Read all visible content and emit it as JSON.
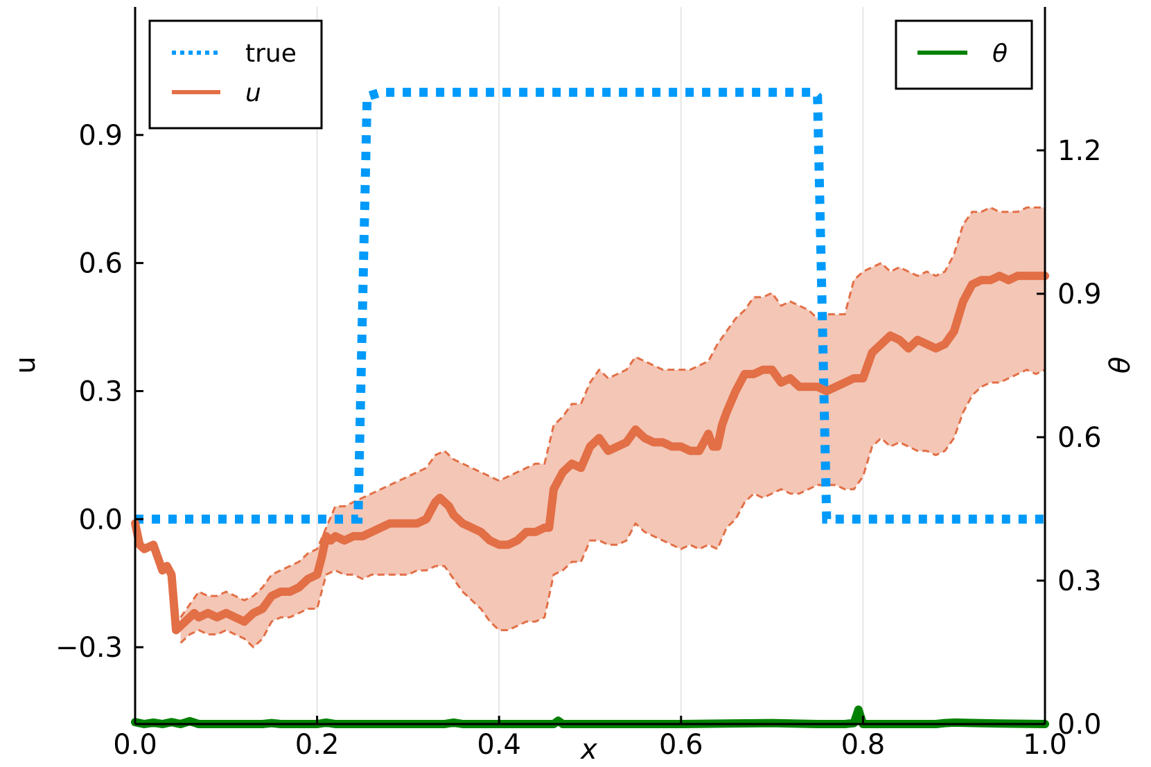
{
  "chart_data": {
    "type": "line",
    "x_axis": {
      "label": "x",
      "range": [
        0.0,
        1.0
      ],
      "ticks": [
        0.0,
        0.2,
        0.4,
        0.6,
        0.8,
        1.0
      ],
      "tick_labels": [
        "0.0",
        "0.2",
        "0.4",
        "0.6",
        "0.8",
        "1.0"
      ],
      "grid": true
    },
    "y_axis_left": {
      "label": "u",
      "range": [
        -0.48,
        1.2
      ],
      "ticks": [
        -0.3,
        0.0,
        0.3,
        0.6,
        0.9
      ],
      "tick_labels": [
        "−0.3",
        "0.0",
        "0.3",
        "0.6",
        "0.9"
      ]
    },
    "y_axis_right": {
      "label": "θ",
      "range": [
        0.0,
        1.5
      ],
      "ticks": [
        0.0,
        0.3,
        0.6,
        0.9,
        1.2
      ],
      "tick_labels": [
        "0.0",
        "0.3",
        "0.6",
        "0.9",
        "1.2"
      ]
    },
    "legend_left": {
      "position": "top-left",
      "entries": [
        {
          "label": "true",
          "style": "dotted",
          "color": "#009AFA"
        },
        {
          "label": "u",
          "style": "solid",
          "color": "#E26F46"
        }
      ]
    },
    "legend_right": {
      "position": "top-right",
      "entries": [
        {
          "label": "θ",
          "style": "solid",
          "color": "#008000"
        }
      ]
    },
    "colors": {
      "true": "#009AFA",
      "u": "#E26F46",
      "band": "#F4C6B6",
      "theta": "#008000"
    },
    "series": [
      {
        "name": "true",
        "axis": "left",
        "style": "dotted",
        "x": [
          0.0,
          0.245,
          0.25,
          0.255,
          0.27,
          0.745,
          0.75,
          0.755,
          0.76,
          1.0
        ],
        "y": [
          0.0,
          0.0,
          0.5,
          0.99,
          1.0,
          1.0,
          0.99,
          0.5,
          0.0,
          0.0
        ]
      },
      {
        "name": "u",
        "axis": "left",
        "style": "solid",
        "x": [
          0.0,
          0.005,
          0.01,
          0.02,
          0.03,
          0.035,
          0.04,
          0.045,
          0.05,
          0.055,
          0.06,
          0.065,
          0.07,
          0.08,
          0.09,
          0.1,
          0.11,
          0.12,
          0.13,
          0.14,
          0.15,
          0.16,
          0.17,
          0.18,
          0.19,
          0.2,
          0.205,
          0.21,
          0.215,
          0.22,
          0.23,
          0.24,
          0.25,
          0.26,
          0.27,
          0.28,
          0.29,
          0.3,
          0.31,
          0.32,
          0.325,
          0.33,
          0.335,
          0.34,
          0.345,
          0.35,
          0.36,
          0.37,
          0.38,
          0.39,
          0.4,
          0.41,
          0.42,
          0.43,
          0.44,
          0.45,
          0.455,
          0.46,
          0.465,
          0.47,
          0.48,
          0.49,
          0.5,
          0.51,
          0.52,
          0.53,
          0.54,
          0.55,
          0.555,
          0.56,
          0.57,
          0.58,
          0.59,
          0.6,
          0.61,
          0.62,
          0.63,
          0.635,
          0.64,
          0.645,
          0.65,
          0.66,
          0.67,
          0.68,
          0.69,
          0.7,
          0.71,
          0.72,
          0.73,
          0.74,
          0.75,
          0.76,
          0.77,
          0.78,
          0.79,
          0.8,
          0.81,
          0.82,
          0.83,
          0.84,
          0.85,
          0.86,
          0.87,
          0.88,
          0.89,
          0.9,
          0.91,
          0.92,
          0.93,
          0.94,
          0.95,
          0.96,
          0.97,
          0.98,
          0.99,
          1.0
        ],
        "y": [
          -0.01,
          -0.06,
          -0.07,
          -0.06,
          -0.12,
          -0.11,
          -0.13,
          -0.26,
          -0.25,
          -0.24,
          -0.23,
          -0.22,
          -0.23,
          -0.22,
          -0.23,
          -0.22,
          -0.23,
          -0.24,
          -0.22,
          -0.21,
          -0.18,
          -0.17,
          -0.17,
          -0.16,
          -0.14,
          -0.13,
          -0.09,
          -0.04,
          -0.05,
          -0.04,
          -0.05,
          -0.04,
          -0.04,
          -0.03,
          -0.02,
          -0.01,
          -0.01,
          -0.01,
          -0.01,
          0.0,
          0.02,
          0.04,
          0.05,
          0.04,
          0.03,
          0.01,
          -0.01,
          -0.02,
          -0.03,
          -0.05,
          -0.06,
          -0.06,
          -0.05,
          -0.03,
          -0.03,
          -0.02,
          -0.02,
          0.07,
          0.09,
          0.11,
          0.13,
          0.12,
          0.17,
          0.19,
          0.16,
          0.17,
          0.18,
          0.21,
          0.2,
          0.19,
          0.18,
          0.18,
          0.17,
          0.17,
          0.16,
          0.16,
          0.2,
          0.17,
          0.17,
          0.22,
          0.25,
          0.3,
          0.34,
          0.34,
          0.35,
          0.35,
          0.32,
          0.33,
          0.31,
          0.31,
          0.31,
          0.3,
          0.31,
          0.32,
          0.33,
          0.33,
          0.39,
          0.41,
          0.43,
          0.42,
          0.4,
          0.42,
          0.41,
          0.4,
          0.41,
          0.44,
          0.51,
          0.55,
          0.56,
          0.56,
          0.57,
          0.56,
          0.57,
          0.57,
          0.57,
          0.57
        ]
      },
      {
        "name": "u_band_upper",
        "axis": "left",
        "style": "dashed",
        "x": [
          0.05,
          0.06,
          0.07,
          0.08,
          0.09,
          0.1,
          0.11,
          0.12,
          0.13,
          0.14,
          0.15,
          0.16,
          0.17,
          0.18,
          0.19,
          0.2,
          0.21,
          0.22,
          0.23,
          0.24,
          0.25,
          0.26,
          0.27,
          0.28,
          0.29,
          0.3,
          0.31,
          0.32,
          0.33,
          0.34,
          0.35,
          0.36,
          0.37,
          0.38,
          0.39,
          0.4,
          0.41,
          0.42,
          0.43,
          0.44,
          0.45,
          0.46,
          0.47,
          0.48,
          0.49,
          0.5,
          0.51,
          0.52,
          0.53,
          0.54,
          0.55,
          0.56,
          0.57,
          0.58,
          0.59,
          0.6,
          0.61,
          0.62,
          0.63,
          0.64,
          0.65,
          0.66,
          0.67,
          0.68,
          0.69,
          0.7,
          0.71,
          0.72,
          0.73,
          0.74,
          0.75,
          0.76,
          0.77,
          0.78,
          0.79,
          0.8,
          0.81,
          0.82,
          0.83,
          0.84,
          0.85,
          0.86,
          0.87,
          0.88,
          0.89,
          0.9,
          0.91,
          0.92,
          0.93,
          0.94,
          0.95,
          0.96,
          0.97,
          0.98,
          0.99,
          1.0
        ],
        "y": [
          -0.23,
          -0.2,
          -0.17,
          -0.18,
          -0.18,
          -0.17,
          -0.18,
          -0.19,
          -0.18,
          -0.16,
          -0.13,
          -0.12,
          -0.11,
          -0.1,
          -0.08,
          -0.07,
          -0.02,
          0.03,
          0.03,
          0.04,
          0.05,
          0.06,
          0.07,
          0.08,
          0.09,
          0.1,
          0.11,
          0.12,
          0.15,
          0.16,
          0.14,
          0.13,
          0.12,
          0.11,
          0.1,
          0.09,
          0.1,
          0.11,
          0.12,
          0.13,
          0.13,
          0.22,
          0.24,
          0.27,
          0.27,
          0.32,
          0.35,
          0.33,
          0.34,
          0.35,
          0.38,
          0.37,
          0.36,
          0.35,
          0.35,
          0.35,
          0.35,
          0.36,
          0.37,
          0.41,
          0.44,
          0.47,
          0.49,
          0.52,
          0.52,
          0.53,
          0.5,
          0.51,
          0.5,
          0.49,
          0.47,
          0.48,
          0.48,
          0.48,
          0.56,
          0.58,
          0.59,
          0.6,
          0.58,
          0.59,
          0.58,
          0.57,
          0.58,
          0.57,
          0.58,
          0.62,
          0.69,
          0.72,
          0.72,
          0.73,
          0.72,
          0.72,
          0.72,
          0.73,
          0.73,
          0.73
        ]
      },
      {
        "name": "u_band_lower",
        "axis": "left",
        "style": "dashed",
        "x": [
          0.05,
          0.06,
          0.07,
          0.08,
          0.09,
          0.1,
          0.11,
          0.12,
          0.13,
          0.14,
          0.15,
          0.16,
          0.17,
          0.18,
          0.19,
          0.2,
          0.21,
          0.22,
          0.23,
          0.24,
          0.25,
          0.26,
          0.27,
          0.28,
          0.29,
          0.3,
          0.31,
          0.32,
          0.33,
          0.34,
          0.35,
          0.36,
          0.37,
          0.38,
          0.39,
          0.4,
          0.41,
          0.42,
          0.43,
          0.44,
          0.45,
          0.46,
          0.47,
          0.48,
          0.49,
          0.5,
          0.51,
          0.52,
          0.53,
          0.54,
          0.55,
          0.56,
          0.57,
          0.58,
          0.59,
          0.6,
          0.61,
          0.62,
          0.63,
          0.64,
          0.65,
          0.66,
          0.67,
          0.68,
          0.69,
          0.7,
          0.71,
          0.72,
          0.73,
          0.74,
          0.75,
          0.76,
          0.77,
          0.78,
          0.79,
          0.8,
          0.81,
          0.82,
          0.83,
          0.84,
          0.85,
          0.86,
          0.87,
          0.88,
          0.89,
          0.9,
          0.91,
          0.92,
          0.93,
          0.94,
          0.95,
          0.96,
          0.97,
          0.98,
          0.99,
          1.0
        ],
        "y": [
          -0.29,
          -0.27,
          -0.26,
          -0.27,
          -0.27,
          -0.26,
          -0.27,
          -0.28,
          -0.3,
          -0.28,
          -0.24,
          -0.23,
          -0.23,
          -0.22,
          -0.21,
          -0.21,
          -0.13,
          -0.12,
          -0.13,
          -0.13,
          -0.14,
          -0.13,
          -0.13,
          -0.13,
          -0.13,
          -0.13,
          -0.12,
          -0.12,
          -0.11,
          -0.11,
          -0.14,
          -0.17,
          -0.19,
          -0.21,
          -0.24,
          -0.26,
          -0.26,
          -0.25,
          -0.24,
          -0.24,
          -0.23,
          -0.13,
          -0.12,
          -0.1,
          -0.1,
          -0.05,
          -0.05,
          -0.06,
          -0.06,
          -0.05,
          -0.01,
          -0.03,
          -0.04,
          -0.05,
          -0.06,
          -0.07,
          -0.06,
          -0.07,
          -0.06,
          -0.07,
          -0.02,
          0.0,
          0.04,
          0.06,
          0.05,
          0.06,
          0.07,
          0.06,
          0.06,
          0.07,
          0.08,
          0.08,
          0.08,
          0.07,
          0.07,
          0.1,
          0.17,
          0.19,
          0.17,
          0.18,
          0.17,
          0.16,
          0.16,
          0.15,
          0.16,
          0.19,
          0.25,
          0.29,
          0.31,
          0.32,
          0.32,
          0.33,
          0.34,
          0.35,
          0.34,
          0.35
        ]
      },
      {
        "name": "theta",
        "axis": "right",
        "style": "solid",
        "x": [
          0.0,
          0.01,
          0.02,
          0.03,
          0.04,
          0.05,
          0.06,
          0.07,
          0.1,
          0.14,
          0.15,
          0.16,
          0.2,
          0.21,
          0.22,
          0.3,
          0.34,
          0.35,
          0.36,
          0.46,
          0.465,
          0.47,
          0.48,
          0.6,
          0.65,
          0.7,
          0.75,
          0.78,
          0.79,
          0.795,
          0.8,
          0.81,
          0.85,
          0.88,
          0.89,
          0.9,
          0.95,
          1.0
        ],
        "y": [
          0.004,
          0.0,
          0.003,
          0.0,
          0.004,
          0.0,
          0.006,
          0.0,
          0.0,
          0.0,
          0.002,
          0.0,
          0.0,
          0.003,
          0.0,
          0.0,
          0.0,
          0.003,
          0.0,
          0.0,
          0.007,
          0.0,
          0.0,
          0.0,
          0.001,
          0.002,
          0.0,
          0.0,
          0.002,
          0.03,
          0.0,
          0.0,
          0.0,
          0.0,
          0.002,
          0.003,
          0.001,
          0.0
        ]
      }
    ]
  }
}
